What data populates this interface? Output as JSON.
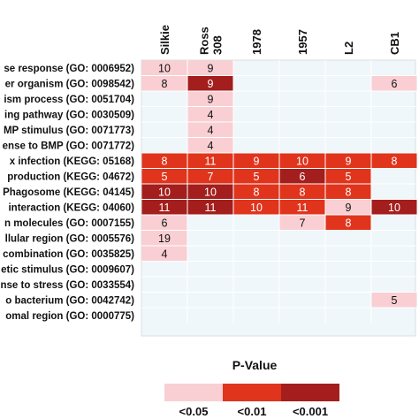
{
  "chart_data": {
    "type": "heatmap",
    "columns": [
      [
        "Silkie"
      ],
      [
        "Ross",
        "308"
      ],
      [
        "1978"
      ],
      [
        "1957"
      ],
      [
        "L2"
      ],
      [
        "CB1"
      ]
    ],
    "rows": [
      "se response (GO: 0006952)",
      "er organism (GO: 0098542)",
      "ism process (GO: 0051704)",
      "ing pathway (GO: 0030509)",
      "MP stimulus (GO: 0071773)",
      "ense to BMP (GO: 0071772)",
      "x infection (KEGG: 05168)",
      "production (KEGG: 04672)",
      "Phagosome (KEGG: 04145)",
      "interaction (KEGG: 04060)",
      "n molecules (GO: 0007155)",
      "llular region (GO: 0005576)",
      "combination (GO: 0035825)",
      "etic stimulus (GO: 0009607)",
      "nse to stress (GO: 0033554)",
      "o bacterium (GO: 0042742)",
      "omal region (GO: 0000775)"
    ],
    "cells": [
      [
        {
          "v": 10,
          "p": 0
        },
        {
          "v": 9,
          "p": 0
        },
        null,
        null,
        null,
        null
      ],
      [
        {
          "v": 8,
          "p": 0
        },
        {
          "v": 9,
          "p": 2
        },
        null,
        null,
        null,
        {
          "v": 6,
          "p": 0
        }
      ],
      [
        null,
        {
          "v": 9,
          "p": 0
        },
        null,
        null,
        null,
        null
      ],
      [
        null,
        {
          "v": 4,
          "p": 0
        },
        null,
        null,
        null,
        null
      ],
      [
        null,
        {
          "v": 4,
          "p": 0
        },
        null,
        null,
        null,
        null
      ],
      [
        null,
        {
          "v": 4,
          "p": 0
        },
        null,
        null,
        null,
        null
      ],
      [
        {
          "v": 8,
          "p": 1
        },
        {
          "v": 11,
          "p": 1
        },
        {
          "v": 9,
          "p": 1
        },
        {
          "v": 10,
          "p": 1
        },
        {
          "v": 9,
          "p": 1
        },
        {
          "v": 8,
          "p": 1
        }
      ],
      [
        {
          "v": 5,
          "p": 1
        },
        {
          "v": 7,
          "p": 1
        },
        {
          "v": 5,
          "p": 1
        },
        {
          "v": 6,
          "p": 2
        },
        {
          "v": 5,
          "p": 1
        },
        null
      ],
      [
        {
          "v": 10,
          "p": 2
        },
        {
          "v": 10,
          "p": 2
        },
        {
          "v": 8,
          "p": 1
        },
        {
          "v": 8,
          "p": 1
        },
        {
          "v": 8,
          "p": 1
        },
        null
      ],
      [
        {
          "v": 11,
          "p": 2
        },
        {
          "v": 11,
          "p": 2
        },
        {
          "v": 10,
          "p": 1
        },
        {
          "v": 11,
          "p": 1
        },
        {
          "v": 9,
          "p": 0
        },
        {
          "v": 10,
          "p": 2
        }
      ],
      [
        {
          "v": 6,
          "p": 0
        },
        null,
        null,
        {
          "v": 7,
          "p": 0
        },
        {
          "v": 8,
          "p": 1
        },
        null
      ],
      [
        {
          "v": 19,
          "p": 0
        },
        null,
        null,
        null,
        null,
        null
      ],
      [
        {
          "v": 4,
          "p": 0
        },
        null,
        null,
        null,
        null,
        null
      ],
      [
        null,
        null,
        null,
        null,
        null,
        null
      ],
      [
        null,
        null,
        null,
        null,
        null,
        null
      ],
      [
        null,
        null,
        null,
        null,
        null,
        {
          "v": 5,
          "p": 0
        }
      ],
      [
        null,
        null,
        null,
        null,
        null,
        null
      ]
    ],
    "legend": {
      "title": "P-Value",
      "levels": [
        "<0.05",
        "<0.01",
        "<0.001"
      ],
      "colors": [
        "#f9cfd3",
        "#e0341c",
        "#a31e1c"
      ]
    },
    "colors": {
      "background": "#f0f7fa",
      "grid": "#ffffff",
      "text_on_light": "#111111",
      "text_on_dark": "#ffffff"
    }
  }
}
